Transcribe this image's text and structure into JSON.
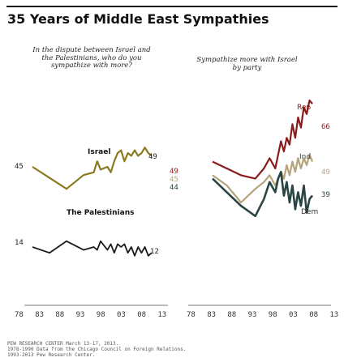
{
  "title": "35 Years of Middle East Sympathies",
  "subtitles": {
    "left": "In the dispute between Israel and\nthe Palestinians, who do you\nsympathize with more?",
    "right": "Sympathize more with Israel\nby party"
  },
  "footnotes": [
    "PEW RESEARCH CENTER March 13-17, 2013.",
    "1978-1990 Data from the Chicago Council on Foreign Relations.",
    "1993-2013 Pew Research Center."
  ],
  "colors": {
    "israel": "#8a7a1f",
    "palestinians": "#1a1a1a",
    "rep": "#8b1a1a",
    "ind": "#b5a37a",
    "dem": "#2a4545",
    "axis": "#777777"
  },
  "chart_data": [
    {
      "type": "line",
      "title": "",
      "x_ticks": [
        "78",
        "83",
        "88",
        "93",
        "98",
        "03",
        "08",
        "13"
      ],
      "xlim": [
        1978,
        2013
      ],
      "ylim": [
        0,
        75
      ],
      "series": [
        {
          "name": "Israel",
          "x": [
            1978,
            1983,
            1988,
            1993,
            1996,
            1997,
            1998,
            2000,
            2001,
            2002,
            2003,
            2004,
            2005,
            2006,
            2007,
            2008,
            2009,
            2010,
            2011,
            2012,
            2013
          ],
          "values": [
            45,
            41,
            37,
            42,
            43,
            47,
            44,
            45,
            43,
            47,
            50,
            51,
            47,
            50,
            49,
            51,
            49,
            50,
            52,
            50,
            49
          ],
          "start_label": "45",
          "end_label": "49"
        },
        {
          "name": "The Palestinians",
          "x": [
            1978,
            1983,
            1988,
            1993,
            1996,
            1997,
            1998,
            2000,
            2001,
            2002,
            2003,
            2004,
            2005,
            2006,
            2007,
            2008,
            2009,
            2010,
            2011,
            2012,
            2013
          ],
          "values": [
            14,
            12,
            16,
            13,
            14,
            13,
            16,
            13,
            15,
            12,
            15,
            14,
            15,
            12,
            14,
            11,
            14,
            12,
            14,
            11,
            12
          ],
          "start_label": "14",
          "end_label": "12"
        }
      ]
    },
    {
      "type": "line",
      "title": "Sympathize more with Israel by party",
      "x_ticks": [
        "78",
        "83",
        "88",
        "93",
        "98",
        "03",
        "08",
        "13"
      ],
      "xlim": [
        1978,
        2013
      ],
      "ylim": [
        30,
        70
      ],
      "series": [
        {
          "name": "Rep",
          "x": [
            1978,
            1983,
            1988,
            1993,
            1996,
            1998,
            2000,
            2001,
            2002,
            2003,
            2004,
            2005,
            2006,
            2007,
            2008,
            2009,
            2010,
            2011,
            2012,
            2013
          ],
          "values": [
            49,
            47,
            45,
            44,
            47,
            50,
            47,
            51,
            55,
            52,
            56,
            54,
            60,
            56,
            62,
            59,
            65,
            63,
            67,
            66
          ],
          "start_label": "49",
          "end_label": "66"
        },
        {
          "name": "Ind",
          "x": [
            1978,
            1983,
            1988,
            1993,
            1996,
            1998,
            2000,
            2001,
            2002,
            2003,
            2004,
            2005,
            2006,
            2007,
            2008,
            2009,
            2010,
            2011,
            2012,
            2013
          ],
          "values": [
            45,
            42,
            37,
            41,
            43,
            45,
            42,
            44,
            46,
            44,
            48,
            45,
            49,
            46,
            50,
            47,
            50,
            48,
            51,
            49
          ],
          "start_label": "45",
          "end_label": "49"
        },
        {
          "name": "Dem",
          "x": [
            1978,
            1983,
            1988,
            1993,
            1996,
            1998,
            2000,
            2001,
            2002,
            2003,
            2004,
            2005,
            2006,
            2007,
            2008,
            2009,
            2010,
            2011,
            2012,
            2013
          ],
          "values": [
            44,
            40,
            36,
            33,
            38,
            43,
            40,
            44,
            46,
            39,
            43,
            37,
            42,
            35,
            40,
            36,
            42,
            34,
            38,
            39
          ],
          "start_label": "44",
          "end_label": "39"
        }
      ]
    }
  ]
}
